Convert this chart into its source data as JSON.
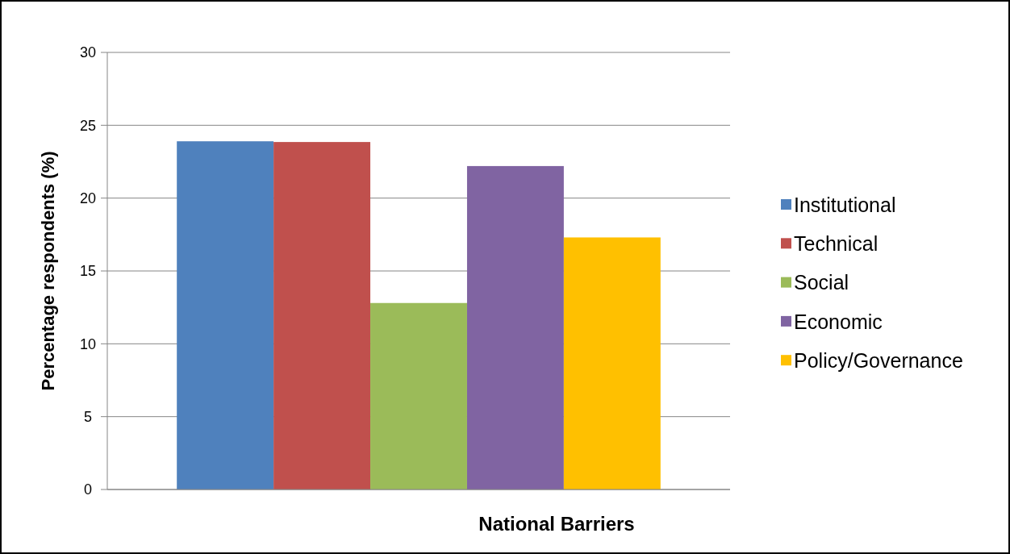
{
  "chart_data": {
    "type": "bar",
    "xlabel": "National Barriers",
    "ylabel": "Percentage respondents (%)",
    "categories": [
      null
    ],
    "series": [
      {
        "name": "Institutional",
        "color": "#4f81bd",
        "values": [
          23.9
        ]
      },
      {
        "name": "Technical",
        "color": "#c0504d",
        "values": [
          23.85
        ]
      },
      {
        "name": "Social",
        "color": "#9bbb59",
        "values": [
          12.8
        ]
      },
      {
        "name": "Economic",
        "color": "#8064a2",
        "values": [
          22.2
        ]
      },
      {
        "name": "Policy/Governance",
        "color": "#ffc000",
        "values": [
          17.3
        ]
      }
    ],
    "ylim": [
      0,
      30
    ],
    "yticks": [
      0,
      5,
      10,
      15,
      20,
      25,
      30
    ],
    "grid": "y",
    "legend": "right"
  }
}
